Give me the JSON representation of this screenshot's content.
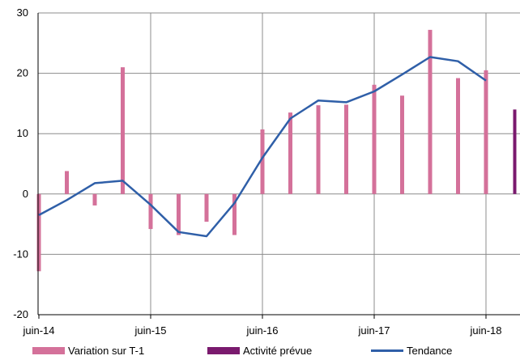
{
  "chart_data": {
    "type": "bar",
    "title": "",
    "xlabel": "",
    "ylabel": "",
    "ylim": [
      -20,
      30
    ],
    "yticks": [
      -20,
      -10,
      0,
      10,
      20,
      30
    ],
    "xtick_labels": [
      "juin-14",
      "juin-15",
      "juin-16",
      "juin-17",
      "juin-18"
    ],
    "grid": {
      "horizontal": true,
      "vertical": true
    },
    "legend_position": "bottom",
    "colors": {
      "variation": "#d4719a",
      "prevue": "#7a1a6e",
      "tendance": "#2f5fa8"
    },
    "series": [
      {
        "name": "Variation sur T-1",
        "type": "bar",
        "x": [
          "juin-14",
          "sept-14",
          "déc-14",
          "mars-15",
          "juin-15",
          "sept-15",
          "déc-15",
          "mars-16",
          "juin-16",
          "sept-16",
          "déc-16",
          "mars-17",
          "juin-17",
          "sept-17",
          "déc-17",
          "mars-18",
          "juin-18"
        ],
        "values": [
          -12.8,
          3.8,
          -1.9,
          21.0,
          -5.8,
          -6.8,
          -4.6,
          -6.8,
          10.7,
          13.5,
          14.7,
          14.8,
          18.1,
          16.3,
          27.2,
          19.2,
          20.5
        ]
      },
      {
        "name": "Activité prévue",
        "type": "bar",
        "x": [
          "sept-18"
        ],
        "values": [
          14.0
        ]
      },
      {
        "name": "Tendance",
        "type": "line",
        "x": [
          "juin-14",
          "sept-14",
          "déc-14",
          "mars-15",
          "juin-15",
          "sept-15",
          "déc-15",
          "mars-16",
          "juin-16",
          "sept-16",
          "déc-16",
          "mars-17",
          "juin-17",
          "sept-17",
          "déc-17",
          "mars-18",
          "juin-18"
        ],
        "values": [
          -3.5,
          -1.0,
          1.8,
          2.2,
          -1.8,
          -6.3,
          -7.0,
          -1.5,
          6.0,
          12.5,
          15.5,
          15.2,
          17.0,
          19.8,
          22.7,
          22.0,
          18.8
        ]
      }
    ]
  }
}
